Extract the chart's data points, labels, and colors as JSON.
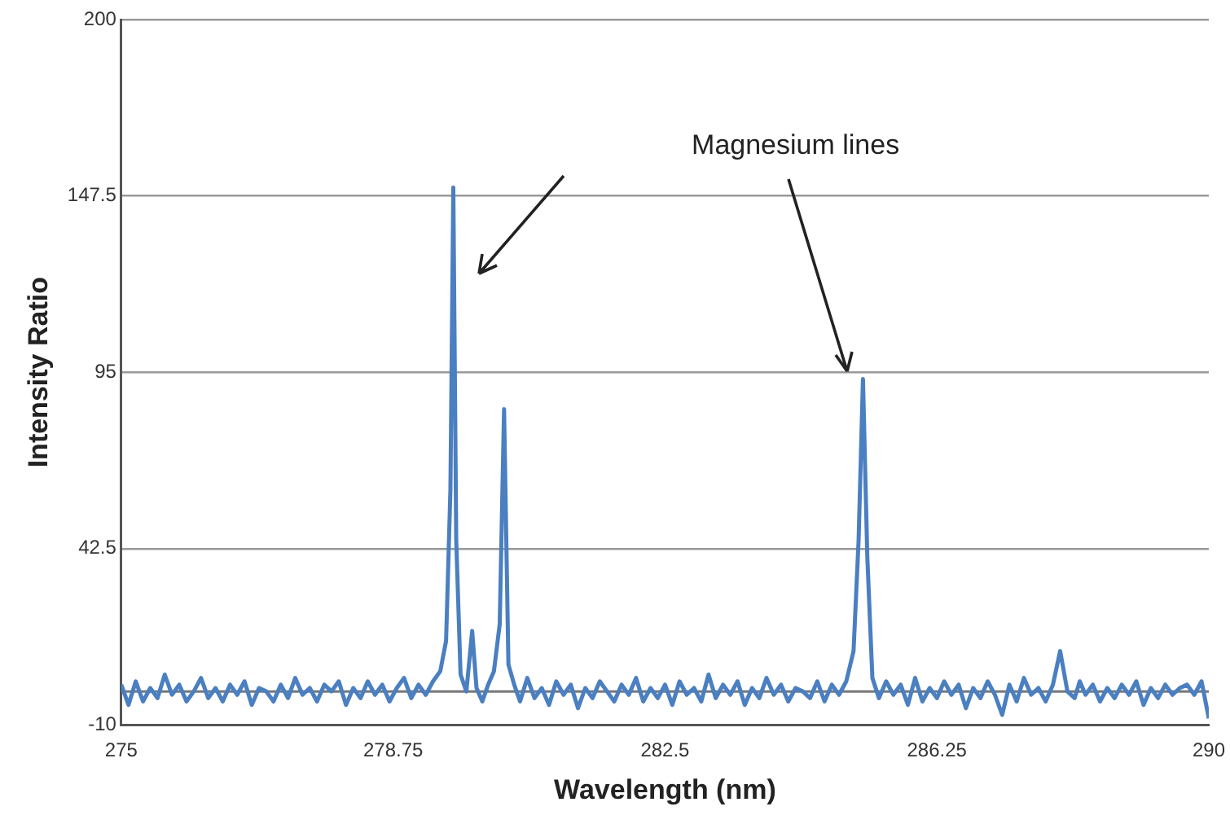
{
  "chart_data": {
    "type": "line",
    "xlabel": "Wavelength (nm)",
    "ylabel": "Intensity Ratio",
    "annotations": [
      "Magnesium lines"
    ],
    "series": [
      {
        "color": "#4a7fc1",
        "x": [
          275,
          275.1,
          275.2,
          275.3,
          275.4,
          275.5,
          275.6,
          275.7,
          275.8,
          275.9,
          276,
          276.1,
          276.2,
          276.3,
          276.4,
          276.5,
          276.6,
          276.7,
          276.8,
          276.9,
          277,
          277.1,
          277.2,
          277.3,
          277.4,
          277.5,
          277.6,
          277.7,
          277.8,
          277.9,
          278,
          278.1,
          278.2,
          278.3,
          278.4,
          278.5,
          278.6,
          278.7,
          278.8,
          278.9,
          279,
          279.1,
          279.2,
          279.3,
          279.4,
          279.48,
          279.54,
          279.58,
          279.62,
          279.68,
          279.76,
          279.84,
          279.9,
          279.98,
          280.06,
          280.14,
          280.22,
          280.28,
          280.34,
          280.42,
          280.5,
          280.6,
          280.7,
          280.8,
          280.9,
          281,
          281.1,
          281.2,
          281.3,
          281.4,
          281.5,
          281.6,
          281.7,
          281.8,
          281.9,
          282,
          282.1,
          282.2,
          282.3,
          282.4,
          282.5,
          282.6,
          282.7,
          282.8,
          282.9,
          283,
          283.1,
          283.2,
          283.3,
          283.4,
          283.5,
          283.6,
          283.7,
          283.8,
          283.9,
          284,
          284.1,
          284.2,
          284.3,
          284.4,
          284.5,
          284.6,
          284.7,
          284.8,
          284.9,
          285,
          285.1,
          285.17,
          285.23,
          285.29,
          285.36,
          285.45,
          285.55,
          285.65,
          285.75,
          285.85,
          285.95,
          286.05,
          286.15,
          286.25,
          286.35,
          286.45,
          286.55,
          286.65,
          286.75,
          286.85,
          286.95,
          287.05,
          287.15,
          287.25,
          287.35,
          287.45,
          287.55,
          287.65,
          287.75,
          287.85,
          287.95,
          288.05,
          288.15,
          288.22,
          288.3,
          288.4,
          288.5,
          288.6,
          288.7,
          288.8,
          288.9,
          289,
          289.1,
          289.2,
          289.3,
          289.4,
          289.5,
          289.6,
          289.7,
          289.8,
          289.9,
          290
        ],
        "values": [
          2,
          -4,
          3,
          -3,
          1,
          -2,
          5,
          -1,
          2,
          -3,
          0,
          4,
          -2,
          1,
          -3,
          2,
          -1,
          3,
          -4,
          1,
          0,
          -3,
          2,
          -2,
          4,
          -1,
          1,
          -3,
          2,
          0,
          3,
          -4,
          1,
          -2,
          3,
          -1,
          2,
          -3,
          1,
          4,
          -2,
          2,
          -1,
          3,
          6,
          15,
          60,
          150,
          45,
          5,
          0,
          18,
          1,
          -3,
          2,
          6,
          20,
          84,
          8,
          2,
          -3,
          4,
          -2,
          1,
          -4,
          3,
          -1,
          2,
          -5,
          1,
          -2,
          3,
          0,
          -3,
          2,
          -1,
          4,
          -3,
          1,
          -2,
          2,
          -4,
          3,
          -1,
          1,
          -3,
          5,
          -2,
          2,
          -1,
          3,
          -4,
          1,
          -2,
          4,
          -1,
          2,
          -3,
          1,
          0,
          -2,
          3,
          -3,
          2,
          -1,
          3,
          12,
          45,
          93,
          40,
          4,
          -2,
          3,
          -1,
          2,
          -4,
          4,
          -3,
          1,
          -2,
          3,
          -1,
          2,
          -5,
          1,
          -2,
          3,
          -1,
          -7,
          2,
          -3,
          4,
          -1,
          1,
          -3,
          2,
          12,
          0,
          -2,
          3,
          -1,
          2,
          -3,
          1,
          -2,
          2,
          -1,
          3,
          -4,
          1,
          -2,
          2,
          -1,
          1,
          2,
          -1,
          3,
          -8
        ]
      }
    ],
    "xlim": [
      275,
      290
    ],
    "xticks": [
      275,
      278.75,
      282.5,
      286.25,
      290
    ],
    "ylim": [
      -10,
      200
    ],
    "yticks": [
      -10,
      42.5,
      95,
      147.5,
      200
    ],
    "ref_lines": [
      {
        "axis": "y",
        "value": 0,
        "color": "#777777"
      }
    ],
    "grid": "y",
    "legend": false,
    "marker": "none",
    "line_style": "solid"
  }
}
